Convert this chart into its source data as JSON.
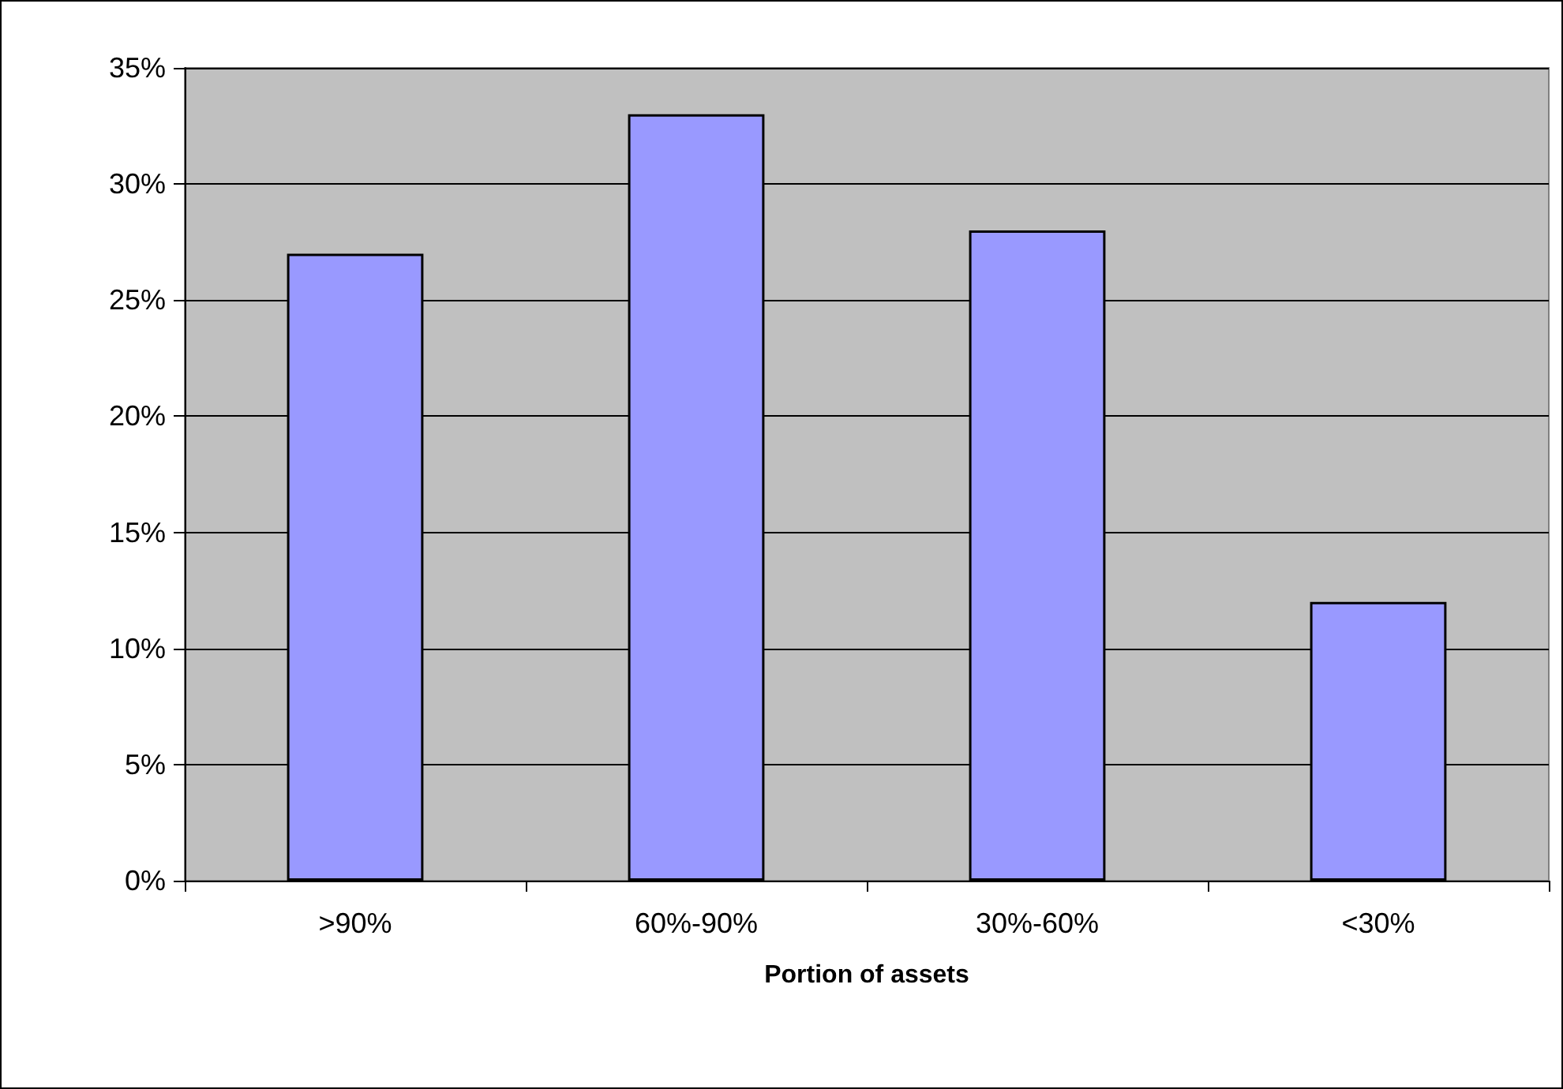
{
  "chart_data": {
    "type": "bar",
    "xlabel": "Portion of assets",
    "categories": [
      ">90%",
      "60%-90%",
      "30%-60%",
      "<30%"
    ],
    "values": [
      27,
      33,
      28,
      12
    ],
    "color": "#9999ff",
    "ylim": [
      0,
      35
    ],
    "yticks": [
      {
        "value": 0,
        "label": "0%"
      },
      {
        "value": 5,
        "label": "5%"
      },
      {
        "value": 10,
        "label": "10%"
      },
      {
        "value": 15,
        "label": "15%"
      },
      {
        "value": 20,
        "label": "20%"
      },
      {
        "value": 25,
        "label": "25%"
      },
      {
        "value": 30,
        "label": "30%"
      },
      {
        "value": 35,
        "label": "35%"
      }
    ],
    "grid": "y"
  }
}
